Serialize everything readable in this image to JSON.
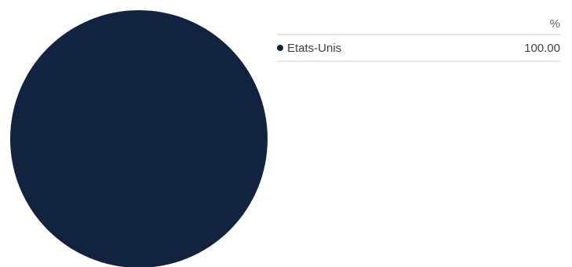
{
  "chart_data": {
    "type": "pie",
    "slices": [
      {
        "label": "Etats-Unis",
        "value": 100.0,
        "display": "100.00",
        "color": "#12233f"
      }
    ],
    "value_header": "%"
  }
}
